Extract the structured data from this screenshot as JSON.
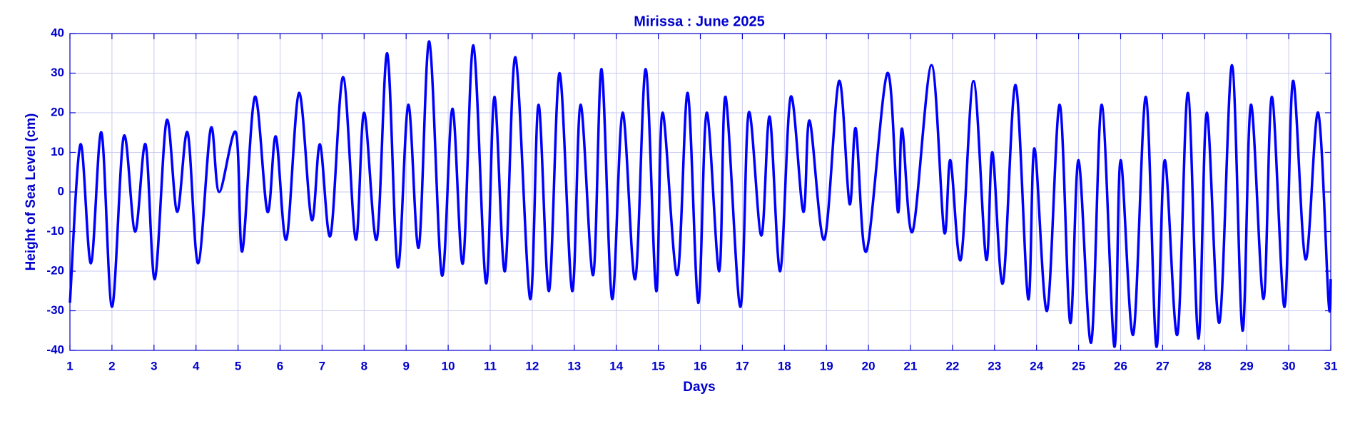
{
  "chart_data": {
    "type": "line",
    "title": "Mirissa : June 2025",
    "xlabel": "Days",
    "ylabel": "Height of Sea Level (cm)",
    "grid": true,
    "xlim": [
      1,
      31
    ],
    "ylim": [
      -40,
      40
    ],
    "xticks": [
      1,
      2,
      3,
      4,
      5,
      6,
      7,
      8,
      9,
      10,
      11,
      12,
      13,
      14,
      15,
      16,
      17,
      18,
      19,
      20,
      21,
      22,
      23,
      24,
      25,
      26,
      27,
      28,
      29,
      30,
      31
    ],
    "yticks": [
      -40,
      -30,
      -20,
      -10,
      0,
      10,
      20,
      30,
      40
    ],
    "series": [
      {
        "color": "#0000ff",
        "x": [
          1.0,
          1.25,
          1.5,
          1.75,
          2.0,
          2.28,
          2.55,
          2.8,
          3.02,
          3.3,
          3.55,
          3.8,
          4.05,
          4.35,
          4.55,
          4.95,
          5.1,
          5.4,
          5.7,
          5.9,
          6.15,
          6.45,
          6.75,
          6.95,
          7.2,
          7.5,
          7.8,
          8.0,
          8.3,
          8.55,
          8.8,
          9.05,
          9.3,
          9.55,
          9.85,
          10.1,
          10.35,
          10.6,
          10.9,
          11.1,
          11.35,
          11.6,
          11.95,
          12.15,
          12.4,
          12.65,
          12.95,
          13.15,
          13.45,
          13.65,
          13.9,
          14.15,
          14.45,
          14.7,
          14.95,
          15.1,
          15.45,
          15.7,
          15.95,
          16.15,
          16.45,
          16.6,
          16.95,
          17.15,
          17.45,
          17.65,
          17.9,
          18.15,
          18.45,
          18.6,
          18.95,
          19.3,
          19.55,
          19.7,
          19.95,
          20.45,
          20.7,
          20.8,
          21.05,
          21.5,
          21.8,
          21.95,
          22.2,
          22.5,
          22.8,
          22.95,
          23.2,
          23.5,
          23.8,
          23.95,
          24.25,
          24.55,
          24.8,
          25.0,
          25.3,
          25.55,
          25.85,
          26.0,
          26.3,
          26.6,
          26.85,
          27.05,
          27.35,
          27.6,
          27.85,
          28.05,
          28.35,
          28.65,
          28.9,
          29.1,
          29.4,
          29.6,
          29.9,
          30.1,
          30.4,
          30.7,
          30.95,
          31.0
        ],
        "values": [
          -28,
          12,
          -18,
          15,
          -29,
          14,
          -10,
          12,
          -22,
          18,
          -5,
          15,
          -18,
          16,
          0,
          15,
          -15,
          24,
          -5,
          14,
          -12,
          25,
          -7,
          12,
          -11,
          29,
          -12,
          20,
          -12,
          35,
          -19,
          22,
          -14,
          38,
          -21,
          21,
          -18,
          37,
          -23,
          24,
          -20,
          34,
          -27,
          22,
          -25,
          30,
          -25,
          22,
          -21,
          31,
          -27,
          20,
          -22,
          31,
          -25,
          20,
          -21,
          25,
          -28,
          20,
          -20,
          24,
          -29,
          20,
          -11,
          19,
          -20,
          24,
          -5,
          18,
          -12,
          28,
          -3,
          16,
          -15,
          30,
          -5,
          16,
          -10,
          32,
          -10,
          8,
          -17,
          28,
          -17,
          10,
          -23,
          27,
          -27,
          11,
          -30,
          22,
          -33,
          8,
          -38,
          22,
          -39,
          8,
          -36,
          24,
          -39,
          8,
          -36,
          25,
          -37,
          20,
          -33,
          32,
          -35,
          22,
          -27,
          24,
          -29,
          28,
          -17,
          20,
          -28,
          -22
        ]
      }
    ]
  }
}
